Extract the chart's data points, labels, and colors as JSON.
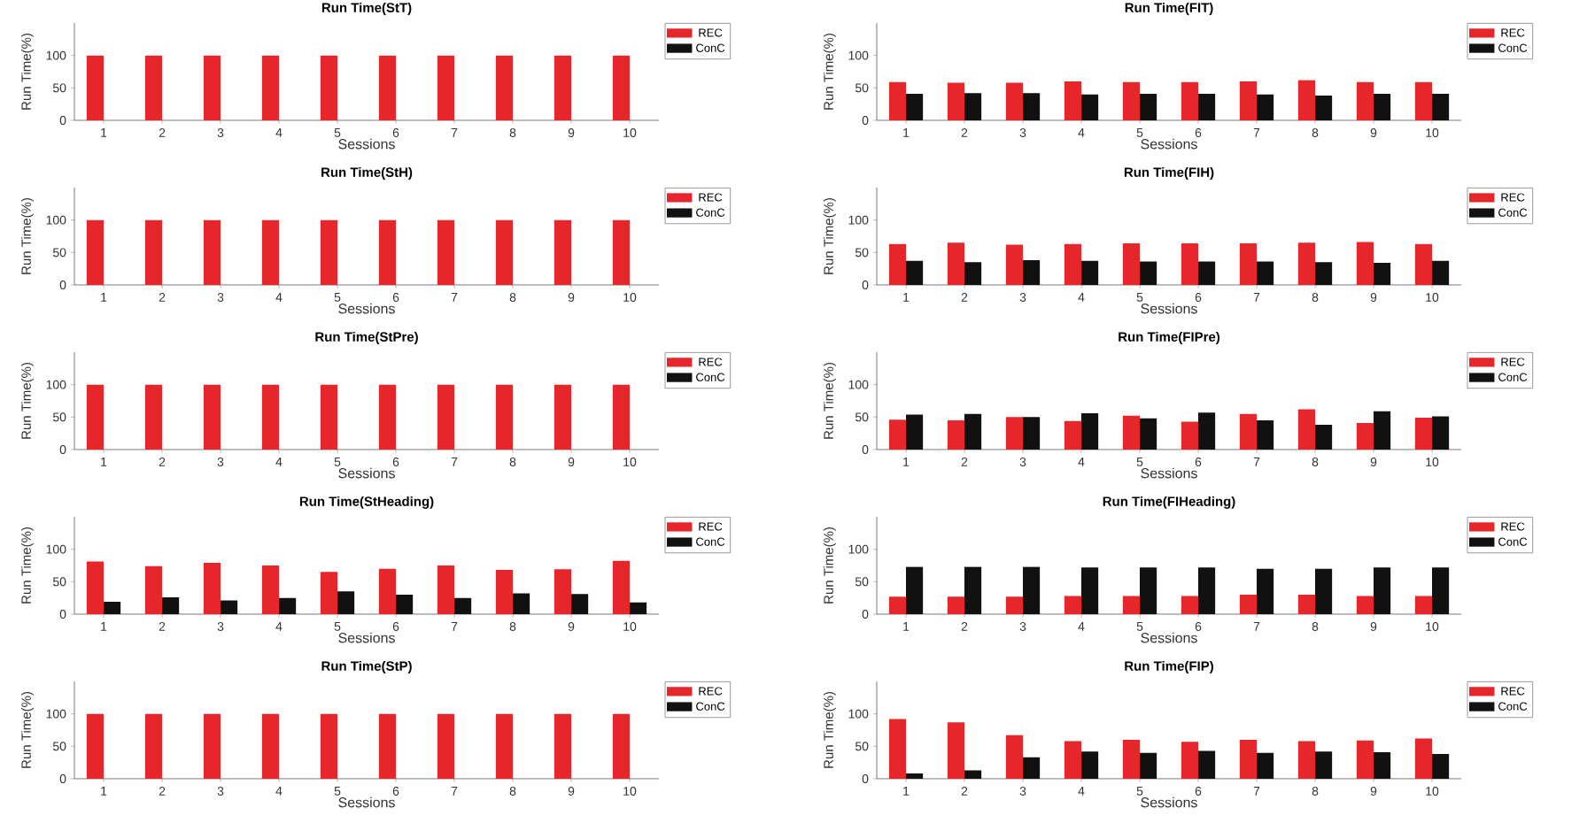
{
  "chart_data": [
    {
      "type": "bar",
      "title": "Run Time(StT)",
      "xlabel": "Sessions",
      "ylabel": "Run Time(%)",
      "categories": [
        "1",
        "2",
        "3",
        "4",
        "5",
        "6",
        "7",
        "8",
        "9",
        "10"
      ],
      "ylim": [
        0,
        150
      ],
      "yticks": [
        0,
        50,
        100
      ],
      "legend": "top right",
      "series": [
        {
          "name": "REC",
          "color": "#e5262a",
          "values": [
            100,
            100,
            100,
            100,
            100,
            100,
            100,
            100,
            100,
            100
          ]
        },
        {
          "name": "ConC",
          "color": "#111111",
          "values": [
            0,
            0,
            0,
            0,
            0,
            0,
            0,
            0,
            0,
            0
          ]
        }
      ]
    },
    {
      "type": "bar",
      "title": "Run Time(FIT)",
      "xlabel": "Sessions",
      "ylabel": "Run Time(%)",
      "categories": [
        "1",
        "2",
        "3",
        "4",
        "5",
        "6",
        "7",
        "8",
        "9",
        "10"
      ],
      "ylim": [
        0,
        150
      ],
      "yticks": [
        0,
        50,
        100
      ],
      "legend": "top right",
      "series": [
        {
          "name": "REC",
          "color": "#e5262a",
          "values": [
            59,
            58,
            58,
            60,
            59,
            59,
            60,
            62,
            59,
            59
          ]
        },
        {
          "name": "ConC",
          "color": "#111111",
          "values": [
            41,
            42,
            42,
            40,
            41,
            41,
            40,
            38,
            41,
            41
          ]
        }
      ]
    },
    {
      "type": "bar",
      "title": "Run Time(StH)",
      "xlabel": "Sessions",
      "ylabel": "Run Time(%)",
      "categories": [
        "1",
        "2",
        "3",
        "4",
        "5",
        "6",
        "7",
        "8",
        "9",
        "10"
      ],
      "ylim": [
        0,
        150
      ],
      "yticks": [
        0,
        50,
        100
      ],
      "legend": "top right",
      "series": [
        {
          "name": "REC",
          "color": "#e5262a",
          "values": [
            100,
            100,
            100,
            100,
            100,
            100,
            100,
            100,
            100,
            100
          ]
        },
        {
          "name": "ConC",
          "color": "#111111",
          "values": [
            0,
            0,
            0,
            0,
            0,
            0,
            0,
            0,
            0,
            0
          ]
        }
      ]
    },
    {
      "type": "bar",
      "title": "Run Time(FIH)",
      "xlabel": "Sessions",
      "ylabel": "Run Time(%)",
      "categories": [
        "1",
        "2",
        "3",
        "4",
        "5",
        "6",
        "7",
        "8",
        "9",
        "10"
      ],
      "ylim": [
        0,
        150
      ],
      "yticks": [
        0,
        50,
        100
      ],
      "legend": "top right",
      "series": [
        {
          "name": "REC",
          "color": "#e5262a",
          "values": [
            63,
            65,
            62,
            63,
            64,
            64,
            64,
            65,
            66,
            63
          ]
        },
        {
          "name": "ConC",
          "color": "#111111",
          "values": [
            37,
            35,
            38,
            37,
            36,
            36,
            36,
            35,
            34,
            37
          ]
        }
      ]
    },
    {
      "type": "bar",
      "title": "Run Time(StPre)",
      "xlabel": "Sessions",
      "ylabel": "Run Time(%)",
      "categories": [
        "1",
        "2",
        "3",
        "4",
        "5",
        "6",
        "7",
        "8",
        "9",
        "10"
      ],
      "ylim": [
        0,
        150
      ],
      "yticks": [
        0,
        50,
        100
      ],
      "legend": "top right",
      "series": [
        {
          "name": "REC",
          "color": "#e5262a",
          "values": [
            100,
            100,
            100,
            100,
            100,
            100,
            100,
            100,
            100,
            100
          ]
        },
        {
          "name": "ConC",
          "color": "#111111",
          "values": [
            0,
            0,
            0,
            0,
            0,
            0,
            0,
            0,
            0,
            0
          ]
        }
      ]
    },
    {
      "type": "bar",
      "title": "Run Time(FIPre)",
      "xlabel": "Sessions",
      "ylabel": "Run Time(%)",
      "categories": [
        "1",
        "2",
        "3",
        "4",
        "5",
        "6",
        "7",
        "8",
        "9",
        "10"
      ],
      "ylim": [
        0,
        150
      ],
      "yticks": [
        0,
        50,
        100
      ],
      "legend": "top right",
      "series": [
        {
          "name": "REC",
          "color": "#e5262a",
          "values": [
            46,
            45,
            50,
            44,
            52,
            43,
            55,
            62,
            41,
            49
          ]
        },
        {
          "name": "ConC",
          "color": "#111111",
          "values": [
            54,
            55,
            50,
            56,
            48,
            57,
            45,
            38,
            59,
            51
          ]
        }
      ]
    },
    {
      "type": "bar",
      "title": "Run Time(StHeading)",
      "xlabel": "Sessions",
      "ylabel": "Run Time(%)",
      "categories": [
        "1",
        "2",
        "3",
        "4",
        "5",
        "6",
        "7",
        "8",
        "9",
        "10"
      ],
      "ylim": [
        0,
        150
      ],
      "yticks": [
        0,
        50,
        100
      ],
      "legend": "top right",
      "series": [
        {
          "name": "REC",
          "color": "#e5262a",
          "values": [
            81,
            74,
            79,
            75,
            65,
            70,
            75,
            68,
            69,
            82
          ]
        },
        {
          "name": "ConC",
          "color": "#111111",
          "values": [
            19,
            26,
            21,
            25,
            35,
            30,
            25,
            32,
            31,
            18
          ]
        }
      ]
    },
    {
      "type": "bar",
      "title": "Run Time(FIHeading)",
      "xlabel": "Sessions",
      "ylabel": "Run Time(%)",
      "categories": [
        "1",
        "2",
        "3",
        "4",
        "5",
        "6",
        "7",
        "8",
        "9",
        "10"
      ],
      "ylim": [
        0,
        150
      ],
      "yticks": [
        0,
        50,
        100
      ],
      "legend": "top right",
      "series": [
        {
          "name": "REC",
          "color": "#e5262a",
          "values": [
            27,
            27,
            27,
            28,
            28,
            28,
            30,
            30,
            28,
            28
          ]
        },
        {
          "name": "ConC",
          "color": "#111111",
          "values": [
            73,
            73,
            73,
            72,
            72,
            72,
            70,
            70,
            72,
            72
          ]
        }
      ]
    },
    {
      "type": "bar",
      "title": "Run Time(StP)",
      "xlabel": "Sessions",
      "ylabel": "Run Time(%)",
      "categories": [
        "1",
        "2",
        "3",
        "4",
        "5",
        "6",
        "7",
        "8",
        "9",
        "10"
      ],
      "ylim": [
        0,
        150
      ],
      "yticks": [
        0,
        50,
        100
      ],
      "legend": "top right",
      "series": [
        {
          "name": "REC",
          "color": "#e5262a",
          "values": [
            100,
            100,
            100,
            100,
            100,
            100,
            100,
            100,
            100,
            100
          ]
        },
        {
          "name": "ConC",
          "color": "#111111",
          "values": [
            0,
            0,
            0,
            0,
            0,
            0,
            0,
            0,
            0,
            0
          ]
        }
      ]
    },
    {
      "type": "bar",
      "title": "Run Time(FIP)",
      "xlabel": "Sessions",
      "ylabel": "Run Time(%)",
      "categories": [
        "1",
        "2",
        "3",
        "4",
        "5",
        "6",
        "7",
        "8",
        "9",
        "10"
      ],
      "ylim": [
        0,
        150
      ],
      "yticks": [
        0,
        50,
        100
      ],
      "legend": "top right",
      "series": [
        {
          "name": "REC",
          "color": "#e5262a",
          "values": [
            92,
            87,
            67,
            58,
            60,
            57,
            60,
            58,
            59,
            62
          ]
        },
        {
          "name": "ConC",
          "color": "#111111",
          "values": [
            8,
            13,
            33,
            42,
            40,
            43,
            40,
            42,
            41,
            38
          ]
        }
      ]
    }
  ]
}
